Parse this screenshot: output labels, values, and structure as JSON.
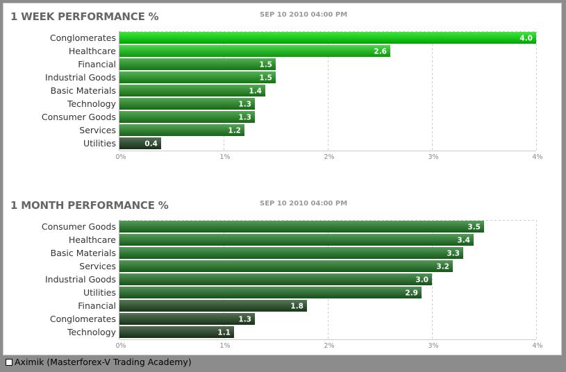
{
  "footer": {
    "text": "Aximik (Masterforex-V Trading Academy)"
  },
  "chart_data": [
    {
      "type": "bar",
      "orientation": "horizontal",
      "title": "1 WEEK PERFORMANCE %",
      "subtitle": "SEP 10 2010 04:00 PM",
      "categories": [
        "Conglomerates",
        "Healthcare",
        "Financial",
        "Industrial Goods",
        "Basic Materials",
        "Technology",
        "Consumer Goods",
        "Services",
        "Utilities"
      ],
      "values": [
        4.0,
        2.6,
        1.5,
        1.5,
        1.4,
        1.3,
        1.3,
        1.2,
        0.4
      ],
      "value_labels": [
        "4.0",
        "2.6",
        "1.5",
        "1.5",
        "1.4",
        "1.3",
        "1.3",
        "1.2",
        "0.4"
      ],
      "xlim": [
        0,
        4
      ],
      "ticks": [
        "0%",
        "1%",
        "2%",
        "3%",
        "4%"
      ],
      "grid": true,
      "bar_colors": [
        "#00dd00",
        "#12c812",
        "#1a9a1a",
        "#1a9a1a",
        "#1c9019",
        "#1d8a1c",
        "#1d8a1c",
        "#1e8520",
        "#1e3f1e"
      ]
    },
    {
      "type": "bar",
      "orientation": "horizontal",
      "title": "1 MONTH PERFORMANCE %",
      "subtitle": "SEP 10 2010 04:00 PM",
      "categories": [
        "Consumer Goods",
        "Healthcare",
        "Basic Materials",
        "Services",
        "Industrial Goods",
        "Utilities",
        "Financial",
        "Conglomerates",
        "Technology"
      ],
      "values": [
        3.5,
        3.4,
        3.3,
        3.2,
        3.0,
        2.9,
        1.8,
        1.3,
        1.1
      ],
      "value_labels": [
        "3.5",
        "3.4",
        "3.3",
        "3.2",
        "3.0",
        "2.9",
        "1.8",
        "1.3",
        "1.1"
      ],
      "xlim": [
        0,
        4
      ],
      "ticks": [
        "0%",
        "1%",
        "2%",
        "3%",
        "4%"
      ],
      "grid": true,
      "bar_colors": [
        "#1c7a22",
        "#1c7a22",
        "#1c7822",
        "#1c7522",
        "#1c6e22",
        "#1c6a22",
        "#1e4b1e",
        "#1e421e",
        "#1e3c1e"
      ]
    }
  ]
}
